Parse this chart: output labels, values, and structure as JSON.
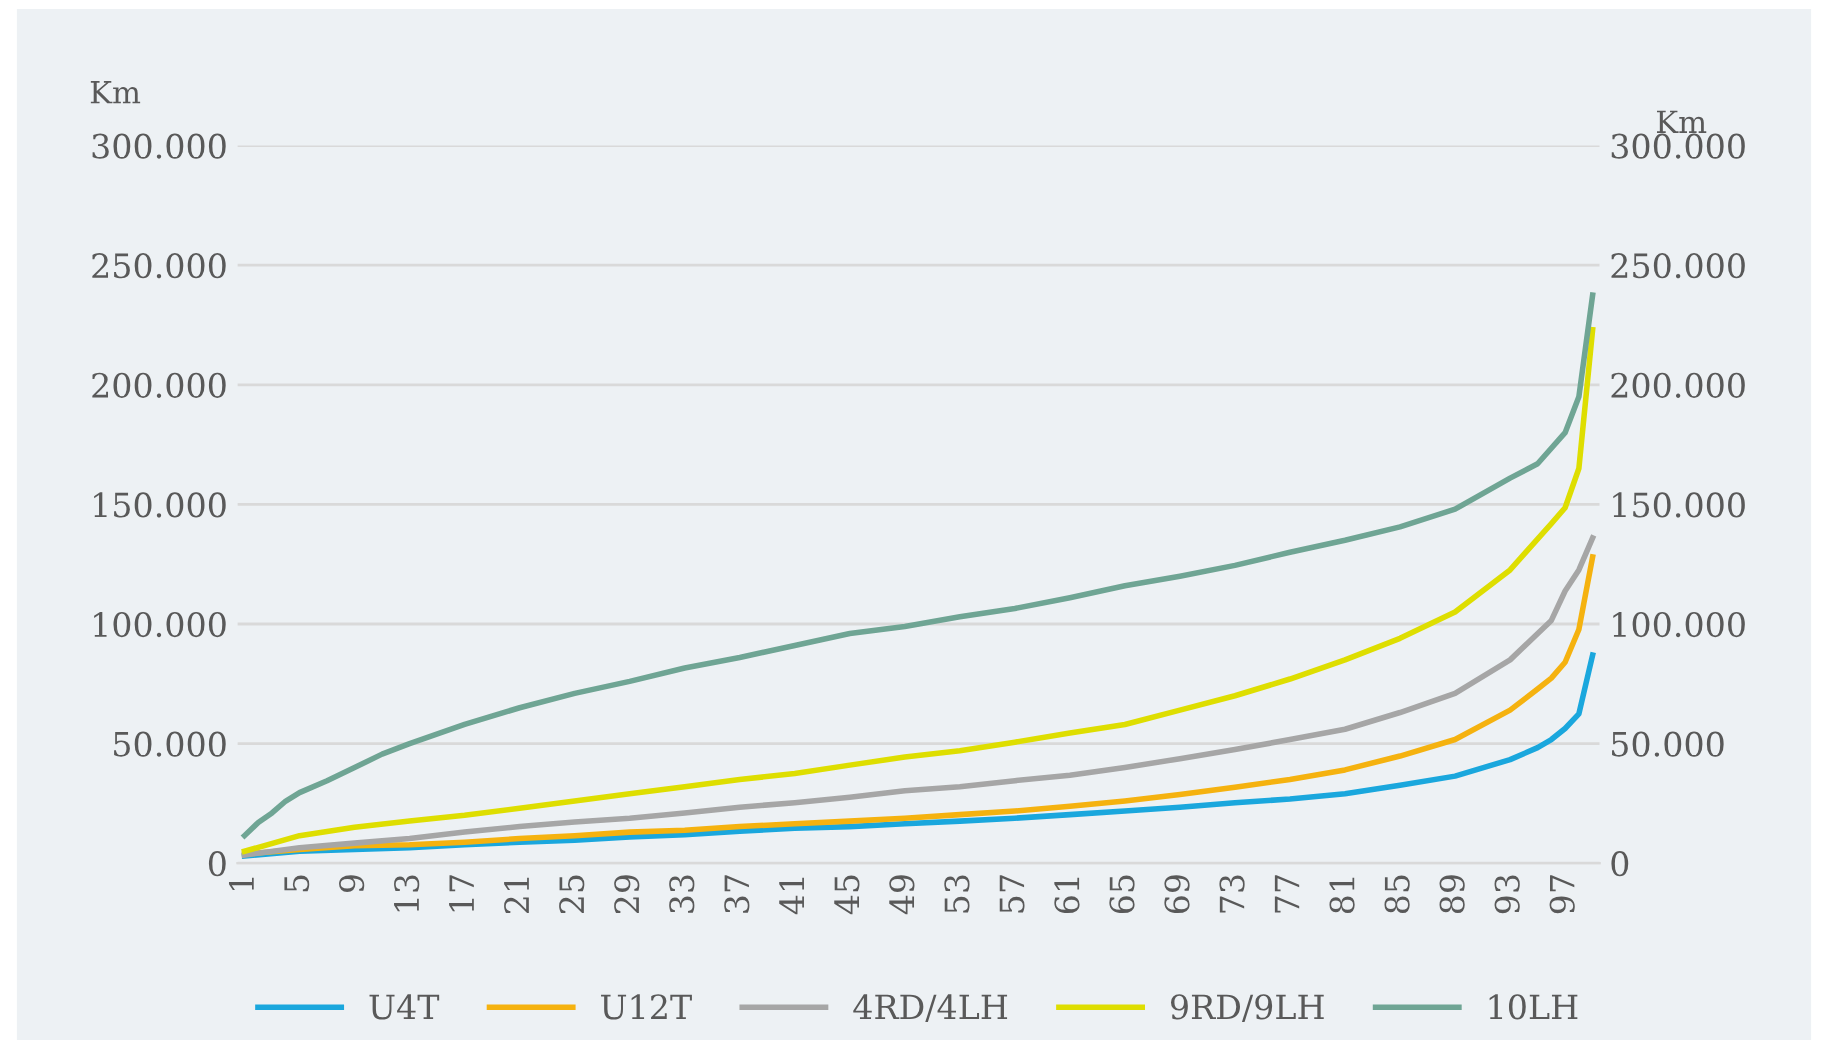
{
  "chart_data": {
    "type": "line",
    "ylabel": "Km",
    "y2label": "Km",
    "xlim": [
      0.5,
      99.5
    ],
    "xticks": [
      1,
      5,
      9,
      13,
      17,
      21,
      25,
      29,
      33,
      37,
      41,
      45,
      49,
      53,
      57,
      61,
      65,
      69,
      73,
      77,
      81,
      85,
      89,
      93,
      97
    ],
    "ylim": [
      0,
      300000
    ],
    "yticks": [
      {
        "value": 0,
        "label": "0"
      },
      {
        "value": 50000,
        "label": "50.000"
      },
      {
        "value": 100000,
        "label": "100.000"
      },
      {
        "value": 150000,
        "label": "150.000"
      },
      {
        "value": 200000,
        "label": "200.000"
      },
      {
        "value": 250000,
        "label": "250.000"
      },
      {
        "value": 300000,
        "label": "300.000"
      }
    ],
    "y2lim": [
      0,
      300000
    ],
    "y2ticks": [
      {
        "value": 0,
        "label": "0"
      },
      {
        "value": 50000,
        "label": "50.000"
      },
      {
        "value": 100000,
        "label": "100.000"
      },
      {
        "value": 150000,
        "label": "150.000"
      },
      {
        "value": 200000,
        "label": "200.000"
      },
      {
        "value": 250000,
        "label": "250.000"
      },
      {
        "value": 300000,
        "label": "300.000"
      }
    ],
    "grid": "y",
    "legend": "bottom",
    "marker": "none",
    "line_style": "solid",
    "series": [
      {
        "name": "U4T",
        "color": "#1aa7dd",
        "x": [
          1,
          5,
          9,
          13,
          17,
          21,
          25,
          29,
          33,
          37,
          41,
          45,
          49,
          53,
          57,
          61,
          65,
          69,
          73,
          77,
          81,
          85,
          89,
          93,
          95,
          96,
          97,
          98,
          99
        ],
        "values": [
          3000,
          5000,
          5700,
          6500,
          7700,
          8800,
          9600,
          11000,
          11900,
          13400,
          14600,
          15300,
          16500,
          17600,
          18800,
          20300,
          21800,
          23400,
          25300,
          26800,
          29000,
          32600,
          36400,
          43300,
          48300,
          51700,
          56300,
          62400,
          87000
        ]
      },
      {
        "name": "U12T",
        "color": "#f5b20f",
        "x": [
          1,
          5,
          9,
          13,
          17,
          21,
          25,
          29,
          33,
          37,
          41,
          45,
          49,
          53,
          57,
          61,
          65,
          69,
          73,
          77,
          81,
          85,
          89,
          93,
          95,
          96,
          97,
          98,
          99
        ],
        "values": [
          3800,
          5700,
          7300,
          7700,
          8800,
          10300,
          11500,
          13000,
          13800,
          15300,
          16500,
          17600,
          18800,
          20300,
          21800,
          23800,
          26000,
          28700,
          31800,
          35000,
          39000,
          44800,
          51700,
          64000,
          72800,
          77400,
          84000,
          97700,
          128000
        ]
      },
      {
        "name": "4RD/4LH",
        "color": "#a6a6a6",
        "x": [
          1,
          5,
          9,
          13,
          17,
          21,
          25,
          29,
          33,
          37,
          41,
          45,
          49,
          53,
          57,
          61,
          65,
          69,
          73,
          77,
          81,
          85,
          89,
          93,
          96,
          97,
          98,
          99
        ],
        "values": [
          3400,
          6500,
          8400,
          10300,
          13000,
          15300,
          17200,
          18800,
          21000,
          23400,
          25300,
          27600,
          30300,
          32000,
          34500,
          36800,
          40000,
          43700,
          47500,
          51700,
          56000,
          63000,
          71000,
          85000,
          101500,
          113800,
          122600,
          136000
        ]
      },
      {
        "name": "9RD/9LH",
        "color": "#dede00",
        "x": [
          1,
          5,
          9,
          13,
          17,
          21,
          25,
          29,
          33,
          37,
          41,
          45,
          49,
          53,
          57,
          61,
          65,
          69,
          73,
          77,
          81,
          85,
          89,
          93,
          96,
          97,
          98,
          99
        ],
        "values": [
          5000,
          11500,
          15000,
          17600,
          20000,
          23000,
          26000,
          29000,
          32000,
          35000,
          37500,
          41000,
          44400,
          47000,
          50600,
          54400,
          58000,
          64000,
          70000,
          77000,
          85000,
          94000,
          105000,
          122600,
          142000,
          148600,
          165000,
          223000
        ]
      },
      {
        "name": "10LH",
        "color": "#6fa594",
        "x": [
          1,
          2,
          3,
          4,
          5,
          7,
          9,
          11,
          13,
          17,
          21,
          25,
          29,
          33,
          37,
          41,
          45,
          49,
          53,
          57,
          61,
          65,
          69,
          73,
          77,
          81,
          85,
          89,
          93,
          95,
          97,
          98,
          99
        ],
        "values": [
          11500,
          17000,
          21000,
          26000,
          29500,
          34500,
          40000,
          45600,
          50000,
          58000,
          65000,
          71000,
          76000,
          81600,
          86000,
          91000,
          96000,
          99000,
          103000,
          106500,
          111000,
          116000,
          120000,
          124500,
          130000,
          135000,
          140600,
          148000,
          161000,
          167000,
          180000,
          195000,
          237500
        ]
      }
    ]
  }
}
